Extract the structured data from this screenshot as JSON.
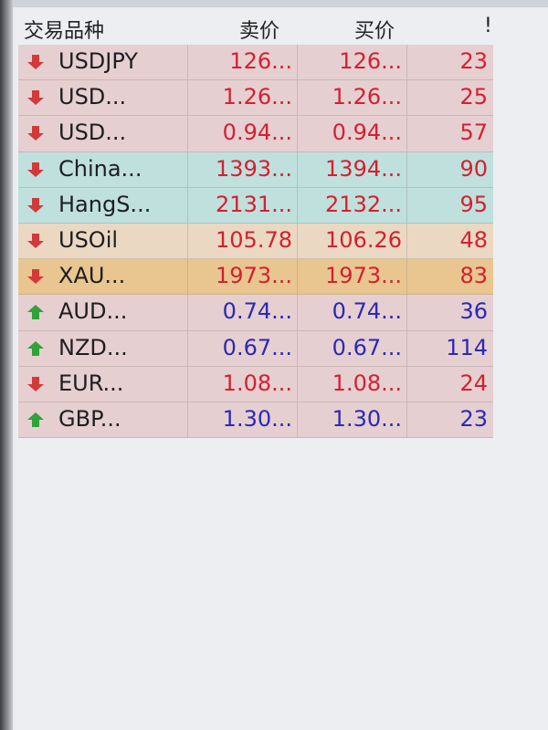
{
  "header": {
    "symbol": "交易品种",
    "bid": "卖价",
    "ask": "买价",
    "spread": "!"
  },
  "colors": {
    "down": "#d42030",
    "up": "#2a2ab4",
    "row_pink": "#e6cfd1",
    "row_teal": "#bfe0dc",
    "row_orange_light": "#ead8c2",
    "row_orange": "#e9c690"
  },
  "rows": [
    {
      "symbol": "USDJPY",
      "bid": "126...",
      "ask": "126...",
      "spread": "23",
      "direction": "down",
      "bg": "row_pink"
    },
    {
      "symbol": "USD...",
      "bid": "1.26...",
      "ask": "1.26...",
      "spread": "25",
      "direction": "down",
      "bg": "row_pink"
    },
    {
      "symbol": "USD...",
      "bid": "0.94...",
      "ask": "0.94...",
      "spread": "57",
      "direction": "down",
      "bg": "row_pink"
    },
    {
      "symbol": "China...",
      "bid": "1393...",
      "ask": "1394...",
      "spread": "90",
      "direction": "down",
      "bg": "row_teal"
    },
    {
      "symbol": "HangS...",
      "bid": "2131...",
      "ask": "2132...",
      "spread": "95",
      "direction": "down",
      "bg": "row_teal"
    },
    {
      "symbol": "USOil",
      "bid": "105.78",
      "ask": "106.26",
      "spread": "48",
      "direction": "down",
      "bg": "row_orange_light"
    },
    {
      "symbol": "XAU...",
      "bid": "1973...",
      "ask": "1973...",
      "spread": "83",
      "direction": "down",
      "bg": "row_orange"
    },
    {
      "symbol": "AUD...",
      "bid": "0.74...",
      "ask": "0.74...",
      "spread": "36",
      "direction": "up",
      "bg": "row_pink"
    },
    {
      "symbol": "NZD...",
      "bid": "0.67...",
      "ask": "0.67...",
      "spread": "114",
      "direction": "up",
      "bg": "row_pink"
    },
    {
      "symbol": "EUR...",
      "bid": "1.08...",
      "ask": "1.08...",
      "spread": "24",
      "direction": "down",
      "bg": "row_pink"
    },
    {
      "symbol": "GBP...",
      "bid": "1.30...",
      "ask": "1.30...",
      "spread": "23",
      "direction": "up",
      "bg": "row_pink"
    }
  ]
}
